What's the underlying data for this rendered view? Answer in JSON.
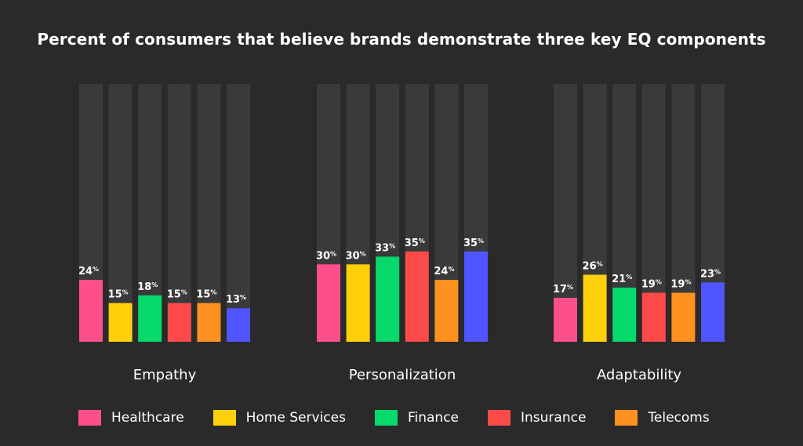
{
  "title": "Percent of consumers that believe brands demonstrate three key EQ components",
  "chart_data": {
    "type": "bar",
    "title": "Percent of consumers that believe brands demonstrate three key EQ components",
    "ylim": [
      0,
      100
    ],
    "value_suffix": "%",
    "track_color": "#3a3a3a",
    "groups": [
      {
        "label": "Empathy",
        "values": [
          24,
          15,
          18,
          15,
          15,
          13
        ]
      },
      {
        "label": "Personalization",
        "values": [
          30,
          30,
          33,
          35,
          24,
          35
        ]
      },
      {
        "label": "Adaptability",
        "values": [
          17,
          26,
          21,
          19,
          19,
          23
        ]
      }
    ],
    "series": [
      {
        "name": "Healthcare",
        "color": "#ff4f8b"
      },
      {
        "name": "Home Services",
        "color": "#ffd00a"
      },
      {
        "name": "Finance",
        "color": "#05d96a"
      },
      {
        "name": "Insurance",
        "color": "#ff4a4a"
      },
      {
        "name": "Telecoms",
        "color": "#ff9121"
      },
      {
        "name": "",
        "color": "#5055ff"
      }
    ],
    "legend": [
      {
        "label": "Healthcare",
        "color": "#ff4f8b"
      },
      {
        "label": "Home Services",
        "color": "#ffd00a"
      },
      {
        "label": "Finance",
        "color": "#05d96a"
      },
      {
        "label": "Insurance",
        "color": "#ff4a4a"
      },
      {
        "label": "Telecoms",
        "color": "#ff9121"
      }
    ],
    "legend_position": "bottom"
  }
}
